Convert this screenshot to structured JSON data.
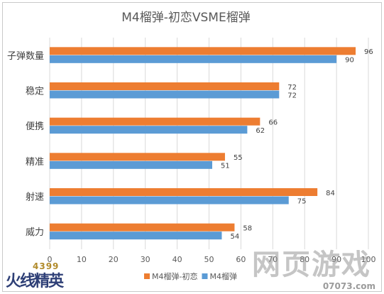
{
  "chart_data": {
    "type": "bar",
    "orientation": "horizontal",
    "title": "M4榴弹-初恋VSME榴弹",
    "categories": [
      "子弹数量",
      "稳定",
      "便携",
      "精准",
      "射速",
      "威力"
    ],
    "series": [
      {
        "name": "M4榴弹-初恋",
        "color": "#ED7D31",
        "values": [
          96,
          72,
          66,
          55,
          84,
          58
        ]
      },
      {
        "name": "M4榴弹",
        "color": "#5B9BD5",
        "values": [
          90,
          72,
          62,
          51,
          75,
          54
        ]
      }
    ],
    "xlim": [
      0,
      100
    ],
    "xticks": [
      "0",
      "10",
      "20",
      "30",
      "40",
      "50",
      "60",
      "70",
      "80",
      "90",
      "100"
    ],
    "grid": true,
    "legend_position": "bottom"
  },
  "watermarks": {
    "left": {
      "number": "4399",
      "text": "火线精英"
    },
    "right": {
      "text": "网页游戏",
      "sub": "07073.com"
    }
  }
}
